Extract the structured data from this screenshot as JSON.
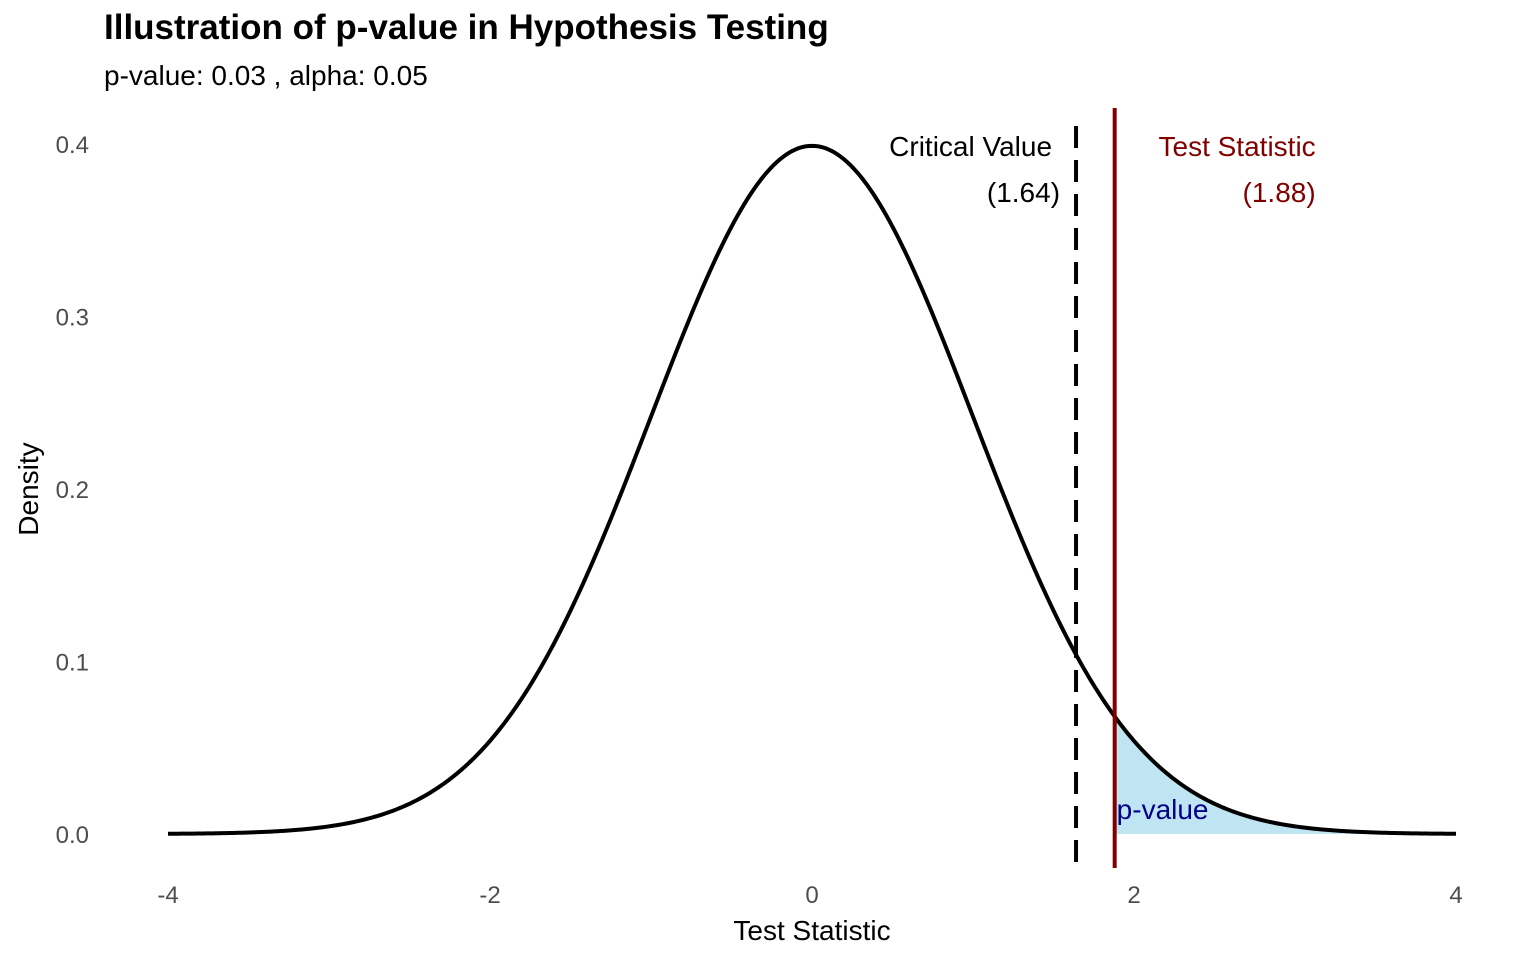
{
  "chart_data": {
    "type": "area",
    "title": "Illustration of p-value in Hypothesis Testing",
    "subtitle": "p-value: 0.03 , alpha: 0.05",
    "xlabel": "Test Statistic",
    "ylabel": "Density",
    "xlim": [
      -4,
      4
    ],
    "ylim": [
      0,
      0.4
    ],
    "x_ticks": [
      -4,
      -2,
      0,
      2,
      4
    ],
    "x_tick_labels": [
      "-4",
      "-2",
      "0",
      "2",
      "4"
    ],
    "y_ticks": [
      0,
      0.1,
      0.2,
      0.3,
      0.4
    ],
    "y_tick_labels": [
      "0.0",
      "0.1",
      "0.2",
      "0.3",
      "0.4"
    ],
    "distribution": "standard normal density",
    "p_value": 0.03,
    "alpha": 0.05,
    "critical_value": 1.64,
    "test_statistic": 1.88,
    "shaded_from": 1.88,
    "grid": false,
    "legend": "none",
    "annotations": {
      "critical_line1": "Critical Value",
      "critical_line2": "(1.64)",
      "test_line1": "Test Statistic",
      "test_line2": "(1.88)",
      "shade_label": "p-value"
    },
    "colors": {
      "curve": "#000000",
      "critical_line": "#000000",
      "test_line": "#800000",
      "shade_fill": "#bfe4f2",
      "shade_label": "#00008b"
    }
  }
}
